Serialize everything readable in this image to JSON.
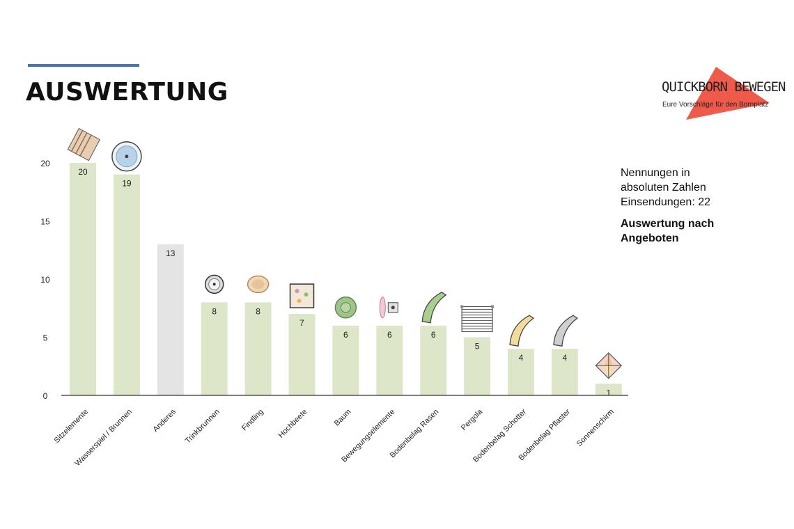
{
  "page": {
    "title": "AUSWERTUNG",
    "accent_color": "#4a73a8"
  },
  "logo": {
    "title": "QUICKBORN BEWEGEN",
    "subtitle": "Eure Vorschläge für den Bornplatz",
    "color": "#f05a4a"
  },
  "info": {
    "line1": "Nennungen in",
    "line2": "absoluten Zahlen",
    "line3": "Einsendungen: 22",
    "bold": "Auswertung nach Angeboten"
  },
  "chart_data": {
    "type": "bar",
    "categories": [
      "Sitzelemente",
      "Wasserspiel / Brunnen",
      "Anderes",
      "Trinkbrunnen",
      "Findling",
      "Hochbeete",
      "Baum",
      "Bewegungselemente",
      "Bodenbelag Rasen",
      "Pergola",
      "Bodenbelag Schotter",
      "Bodenbelag Pflaster",
      "Sonnenschirm"
    ],
    "values": [
      20,
      19,
      13,
      8,
      8,
      7,
      6,
      6,
      6,
      5,
      4,
      4,
      1
    ],
    "data_labels": [
      "20",
      "19",
      "13",
      "8",
      "8",
      "7",
      "6",
      "6",
      "6",
      "5",
      "4",
      "4",
      "1"
    ],
    "bar_colors": [
      "#dde6c9",
      "#dde6c9",
      "#e4e4e4",
      "#dde6c9",
      "#dde6c9",
      "#dde6c9",
      "#dde6c9",
      "#dde6c9",
      "#dde6c9",
      "#dde6c9",
      "#dde6c9",
      "#dde6c9",
      "#dde6c9"
    ],
    "icons": [
      "bench-slats-icon",
      "fountain-icon",
      "",
      "drinking-fountain-icon",
      "boulder-icon",
      "raised-bed-icon",
      "tree-icon",
      "exercise-element-icon",
      "lawn-path-icon",
      "pergola-icon",
      "gravel-path-icon",
      "paving-path-icon",
      "parasol-icon"
    ],
    "yticks": [
      0,
      5,
      10,
      15,
      20
    ],
    "ylim": [
      0,
      21
    ],
    "xlabel": "",
    "ylabel": "",
    "grid": false,
    "legend": "none"
  }
}
